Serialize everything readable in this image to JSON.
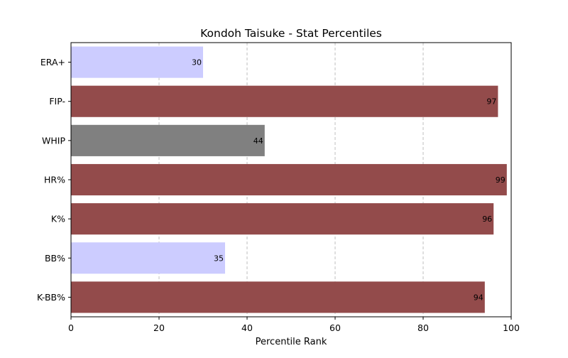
{
  "chart_data": {
    "type": "bar",
    "orientation": "horizontal",
    "title": "Kondoh Taisuke - Stat Percentiles",
    "xlabel": "Percentile Rank",
    "ylabel": "",
    "xlim": [
      0,
      100
    ],
    "xticks": [
      0,
      20,
      40,
      60,
      80,
      100
    ],
    "grid": "x-dashed",
    "categories": [
      "ERA+",
      "FIP-",
      "WHIP",
      "HR%",
      "K%",
      "BB%",
      "K-BB%"
    ],
    "values": [
      30,
      97,
      44,
      99,
      96,
      35,
      94
    ],
    "colors": [
      "#ccccff",
      "#934b4b",
      "#808080",
      "#934b4b",
      "#934b4b",
      "#ccccff",
      "#934b4b"
    ]
  }
}
